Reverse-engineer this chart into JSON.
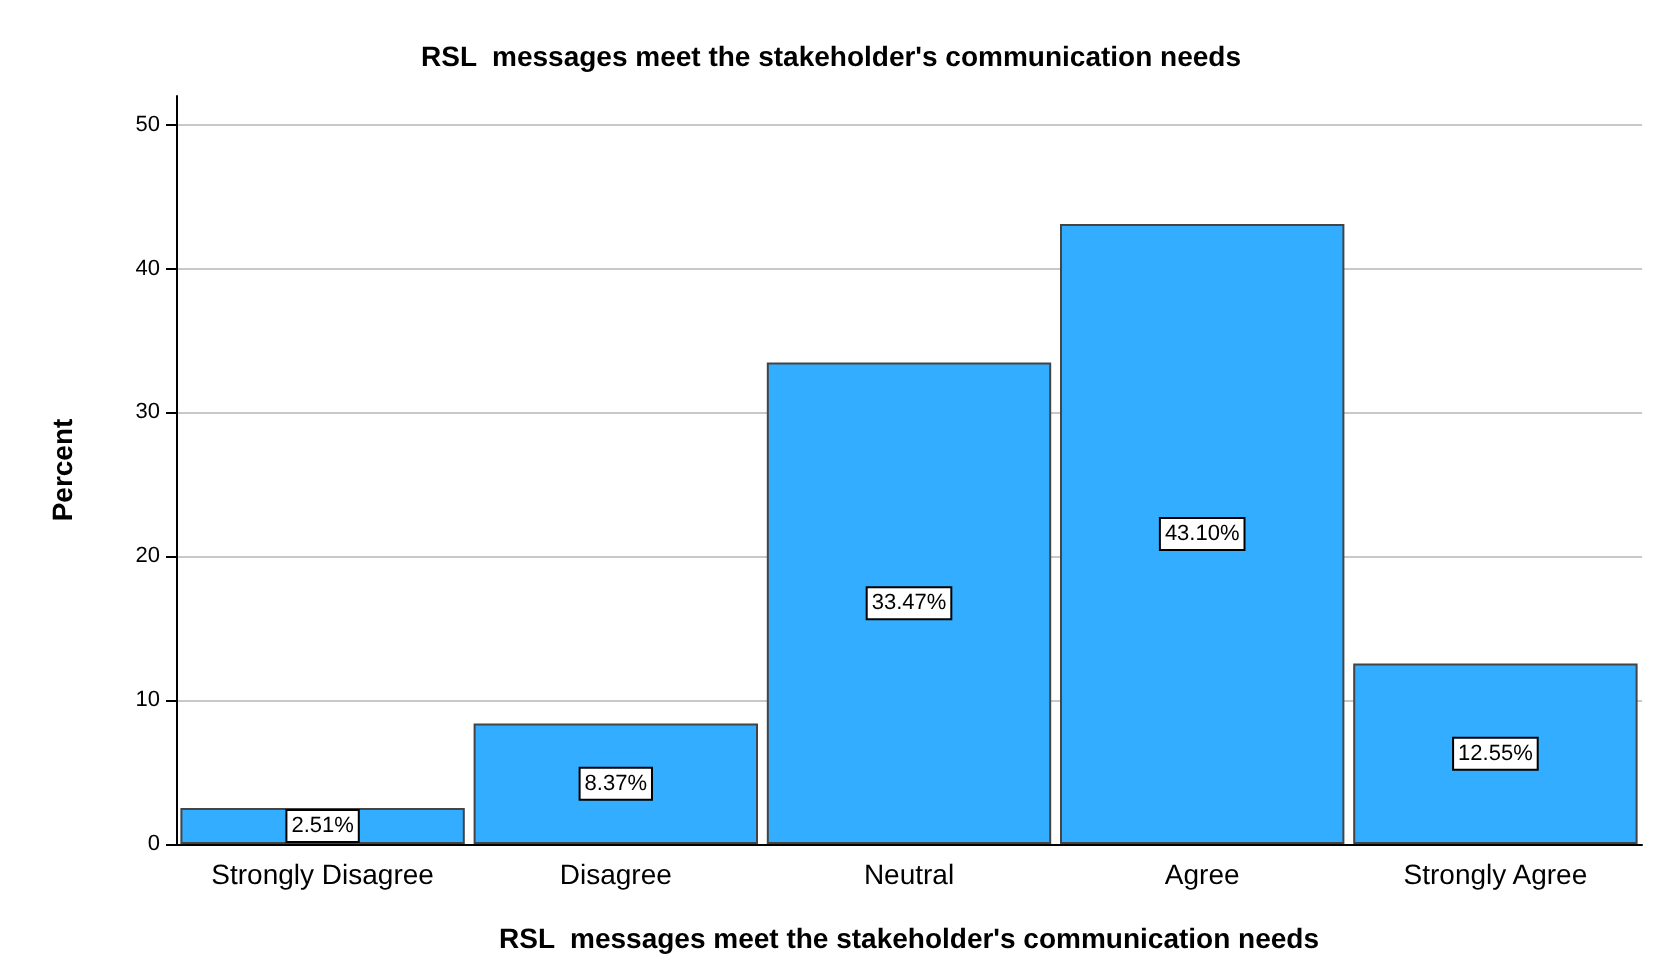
{
  "chart_data": {
    "type": "bar",
    "title": "RSL  messages meet the stakeholder's communication needs",
    "xlabel": "RSL  messages meet the stakeholder's communication needs",
    "ylabel": "Percent",
    "categories": [
      "Strongly Disagree",
      "Disagree",
      "Neutral",
      "Agree",
      "Strongly Agree"
    ],
    "values": [
      2.51,
      8.37,
      33.47,
      43.1,
      12.55
    ],
    "value_labels": [
      "2.51%",
      "8.37%",
      "33.47%",
      "43.10%",
      "12.55%"
    ],
    "color": "#33adff",
    "ylim": [
      0,
      52
    ],
    "yticks": [
      0,
      10,
      20,
      30,
      40,
      50
    ],
    "grid": "y"
  }
}
